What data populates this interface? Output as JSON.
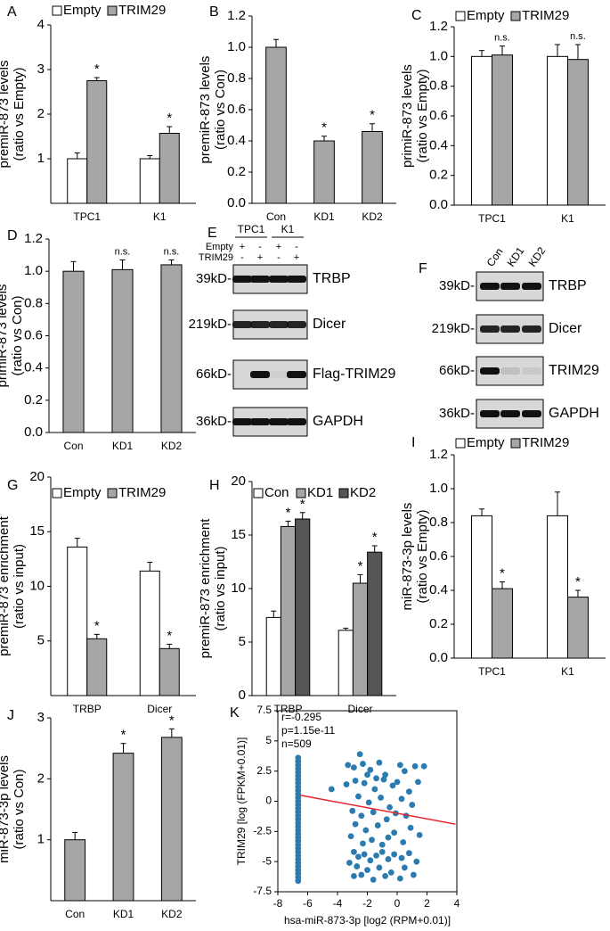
{
  "chart_data": [
    {
      "type": "bar",
      "panel": "A",
      "ylabel": [
        "premiR-873 levels",
        "(ratio vs Empty)"
      ],
      "categories": [
        "TPC1",
        "K1"
      ],
      "ylim": [
        0,
        4
      ],
      "yticks": [
        1,
        2,
        3,
        4
      ],
      "series": [
        {
          "name": "Empty",
          "color": "#ffffff",
          "values": [
            1,
            1
          ],
          "errors": [
            0.13,
            0.07
          ],
          "annotations": [
            null,
            null
          ]
        },
        {
          "name": "TRIM29",
          "color": "#a6a6a6",
          "values": [
            2.75,
            1.57
          ],
          "errors": [
            0.07,
            0.15
          ],
          "annotations": [
            "*",
            "*"
          ]
        }
      ]
    },
    {
      "type": "bar",
      "panel": "B",
      "ylabel": [
        "premiR-873 levels",
        "(ratio vs Con)"
      ],
      "categories": [
        "Con",
        "KD1",
        "KD2"
      ],
      "ylim": [
        0,
        1.2
      ],
      "yticks": [
        {
          "value": 0,
          "label": "0.0"
        },
        0.2,
        0.4,
        0.6,
        0.8,
        {
          "value": 1,
          "label": "1.0"
        },
        1.2
      ],
      "series": [
        {
          "color": "#a6a6a6",
          "values": [
            1,
            0.4,
            0.46
          ],
          "errors": [
            0.05,
            0.03,
            0.05
          ],
          "annotations": [
            null,
            "*",
            "*"
          ]
        }
      ]
    },
    {
      "type": "bar",
      "panel": "C",
      "ylabel": [
        "primiR-873 levels",
        "(ratio vs Empty)"
      ],
      "categories": [
        "TPC1",
        "K1"
      ],
      "ylim": [
        0,
        1.2
      ],
      "yticks": [
        {
          "value": 0,
          "label": "0.0"
        },
        0.2,
        0.4,
        0.6,
        0.8,
        {
          "value": 1,
          "label": "1.0"
        },
        1.2
      ],
      "series": [
        {
          "name": "Empty",
          "color": "#ffffff",
          "values": [
            1,
            1
          ],
          "errors": [
            0.04,
            0.08
          ],
          "annotations": [
            null,
            null
          ]
        },
        {
          "name": "TRIM29",
          "color": "#a6a6a6",
          "values": [
            1.01,
            0.98
          ],
          "errors": [
            0.06,
            0.1
          ],
          "annotations": [
            "n.s.",
            "n.s."
          ]
        }
      ]
    },
    {
      "type": "bar",
      "panel": "D",
      "ylabel": [
        "primiR-873 levels",
        "(ratio vs Con)"
      ],
      "categories": [
        "Con",
        "KD1",
        "KD2"
      ],
      "ylim": [
        0,
        1.2
      ],
      "yticks": [
        {
          "value": 0,
          "label": "0.0"
        },
        0.2,
        0.4,
        0.6,
        0.8,
        {
          "value": 1,
          "label": "1.0"
        },
        1.2
      ],
      "series": [
        {
          "color": "#a6a6a6",
          "values": [
            1,
            1.01,
            1.04
          ],
          "errors": [
            0.06,
            0.06,
            0.03
          ],
          "annotations": [
            null,
            "n.s.",
            "n.s."
          ]
        }
      ]
    },
    {
      "type": "bar",
      "panel": "G",
      "ylabel": [
        "premiR-873 enrichment",
        "(ratio vs input)"
      ],
      "categories": [
        "TRBP",
        "Dicer"
      ],
      "ylim": [
        0,
        20
      ],
      "yticks": [
        5,
        10,
        15,
        20
      ],
      "series": [
        {
          "name": "Empty",
          "color": "#ffffff",
          "values": [
            13.6,
            11.4
          ],
          "errors": [
            0.8,
            0.8
          ],
          "annotations": [
            null,
            null
          ]
        },
        {
          "name": "TRIM29",
          "color": "#a6a6a6",
          "values": [
            5.2,
            4.3
          ],
          "errors": [
            0.4,
            0.4
          ],
          "annotations": [
            "*",
            "*"
          ]
        }
      ]
    },
    {
      "type": "bar",
      "panel": "H",
      "ylabel": [
        "premiR-873 enrichment",
        "(ratio vs input)"
      ],
      "categories": [
        "TRBP",
        "Dicer"
      ],
      "ylim": [
        0,
        20
      ],
      "yticks": [
        0,
        5,
        10,
        15,
        20
      ],
      "series": [
        {
          "name": "Con",
          "color": "#ffffff",
          "values": [
            7.3,
            6.1
          ],
          "errors": [
            0.6,
            0.2
          ],
          "annotations": [
            null,
            null
          ]
        },
        {
          "name": "KD1",
          "color": "#a6a6a6",
          "values": [
            15.8,
            10.5
          ],
          "errors": [
            0.5,
            0.8
          ],
          "annotations": [
            "*",
            "*"
          ]
        },
        {
          "name": "KD2",
          "color": "#555555",
          "values": [
            16.5,
            13.4
          ],
          "errors": [
            0.6,
            0.6
          ],
          "annotations": [
            "*",
            "*"
          ]
        }
      ]
    },
    {
      "type": "bar",
      "panel": "I",
      "ylabel": [
        "miR-873-3p levels",
        "(ratio vs Empty)"
      ],
      "categories": [
        "TPC1",
        "K1"
      ],
      "ylim": [
        0,
        1.2
      ],
      "yticks": [
        {
          "value": 0,
          "label": "0.0"
        },
        0.2,
        0.4,
        0.6,
        0.8,
        {
          "value": 1,
          "label": "1.0"
        },
        1.2
      ],
      "series": [
        {
          "name": "Empty",
          "color": "#ffffff",
          "values": [
            0.84,
            0.84
          ],
          "errors": [
            0.04,
            0.14
          ],
          "annotations": [
            null,
            null
          ]
        },
        {
          "name": "TRIM29",
          "color": "#a6a6a6",
          "values": [
            0.41,
            0.36
          ],
          "errors": [
            0.04,
            0.04
          ],
          "annotations": [
            "*",
            "*"
          ]
        }
      ]
    },
    {
      "type": "bar",
      "panel": "J",
      "ylabel": [
        "miR-873-3p levels",
        "(ratio vs Con)"
      ],
      "categories": [
        "Con",
        "KD1",
        "KD2"
      ],
      "ylim": [
        0,
        3
      ],
      "yticks": [
        1,
        2,
        3
      ],
      "series": [
        {
          "color": "#a6a6a6",
          "values": [
            1,
            2.42,
            2.68
          ],
          "errors": [
            0.12,
            0.16,
            0.14
          ],
          "annotations": [
            null,
            "*",
            "*"
          ]
        }
      ]
    },
    {
      "type": "scatter",
      "panel": "K",
      "xlabel": "hsa-miR-873-3p [log2 (RPM+0.01)]",
      "ylabel": [
        "TRIM29 [log (FPKM+0.01)]"
      ],
      "annotations": [
        "r=-0.295",
        "p=1.15e-11",
        "n=509"
      ],
      "xlim": [
        -8,
        4
      ],
      "xticks": [
        -8,
        -6,
        -4,
        -2,
        0,
        2,
        4
      ],
      "ylim": [
        -7.5,
        7.5
      ],
      "yticks": [
        -7.5,
        -5,
        -2.5,
        0,
        2.5,
        5,
        7.5
      ],
      "series": [
        {
          "color": "#2b7bb0",
          "x": [
            -6.64,
            -6.64,
            -6.64,
            -6.64,
            -6.64,
            -6.64,
            -6.64,
            -6.64,
            -6.64,
            -6.64,
            -6.64,
            -6.64,
            -6.64,
            -6.64,
            -6.64,
            -6.64,
            -6.64,
            -6.64,
            -6.64,
            -6.64,
            -6.64,
            -6.64,
            -6.64,
            -6.64,
            -6.64,
            -6.64,
            -6.64,
            -6.64,
            -6.64,
            -6.64,
            -6.64,
            -6.64,
            -6.64,
            -6.64,
            -6.64,
            -2.9,
            -2.5,
            -2.3,
            -1.8,
            -1.2,
            -0.8,
            0.2,
            0.5,
            1.8,
            1.2,
            -3.4,
            -4.4,
            -2.8,
            -2.2,
            -1.5,
            -0.9,
            -0.3,
            0.8,
            1.4,
            -2.6,
            -1.9,
            -1.1,
            -0.5,
            0.3,
            1.0,
            -3.0,
            -2.4,
            -1.6,
            -0.7,
            0.6,
            -2.8,
            -2.1,
            -1.3,
            -0.2,
            0.9,
            -3.1,
            -1.7,
            -0.6,
            1.5,
            -2.9,
            -2.6,
            -2.2,
            -1.8,
            -1.4,
            -1.0,
            -0.6,
            -0.2,
            0.3,
            0.8,
            1.3,
            -2.7,
            -2.0,
            -1.2,
            -0.4,
            0.5,
            -2.4,
            -1.6,
            -0.8,
            0.2,
            1.1,
            -3.2,
            -2.9,
            -0.1,
            -1.4,
            -2.0,
            0.0,
            -3.3,
            -1.0,
            -2.3,
            0.4
          ],
          "y": [
            -6.6,
            -6.3,
            -6.0,
            -5.7,
            -5.4,
            -5.1,
            -4.8,
            -4.5,
            -4.2,
            -3.9,
            -3.6,
            -3.3,
            -3.0,
            -2.7,
            -2.4,
            -2.1,
            -1.8,
            -1.5,
            -1.2,
            -0.9,
            -0.6,
            -0.3,
            0.0,
            0.3,
            0.6,
            0.9,
            1.2,
            1.5,
            1.8,
            2.1,
            2.4,
            2.7,
            3.0,
            3.3,
            3.6,
            2.8,
            3.9,
            3.1,
            2.6,
            3.2,
            2.2,
            3.0,
            2.5,
            2.9,
            2.9,
            1.4,
            1.0,
            1.7,
            1.5,
            1.0,
            1.8,
            1.3,
            0.8,
            1.6,
            0.4,
            -0.1,
            0.3,
            -0.5,
            0.2,
            -0.3,
            -0.8,
            -1.2,
            -0.9,
            -1.5,
            -1.2,
            -1.9,
            -2.4,
            -2.0,
            -2.6,
            -2.2,
            -2.9,
            -3.2,
            -3.0,
            -2.8,
            -4.2,
            -4.6,
            -4.4,
            -4.9,
            -4.5,
            -4.2,
            -4.8,
            -4.4,
            -4.7,
            -4.3,
            -5.0,
            -5.4,
            -5.7,
            -5.5,
            -5.9,
            -5.5,
            -6.1,
            -6.5,
            -6.2,
            -6.4,
            -6.1,
            -5.1,
            -6.2,
            -1.0,
            1.9,
            2.2,
            1.6,
            3.0,
            -3.6,
            -3.5,
            -3.4
          ]
        }
      ],
      "trendline": {
        "color": "#e3262b",
        "x": [
          -6.5,
          3.9
        ],
        "y": [
          0.5,
          -1.9
        ]
      }
    }
  ],
  "blots": [
    {
      "panel": "E",
      "groups": [
        "TPC1",
        "K1"
      ],
      "conditions": [
        {
          "label": "Empty",
          "marks": [
            "+",
            "-",
            "+",
            "-"
          ]
        },
        {
          "label": "TRIM29",
          "marks": [
            "-",
            "+",
            "-",
            "+"
          ]
        }
      ],
      "markers": [
        "39kD-",
        "219kD-",
        "66kD-",
        "36kD-"
      ],
      "proteins": [
        "TRBP",
        "Dicer",
        "Flag-TRIM29",
        "GAPDH"
      ]
    },
    {
      "panel": "F",
      "lanes": [
        "Con",
        "KD1",
        "KD2"
      ],
      "markers": [
        "39kD-",
        "219kD-",
        "66kD-",
        "36kD-"
      ],
      "proteins": [
        "TRBP",
        "Dicer",
        "TRIM29",
        "GAPDH"
      ]
    }
  ]
}
